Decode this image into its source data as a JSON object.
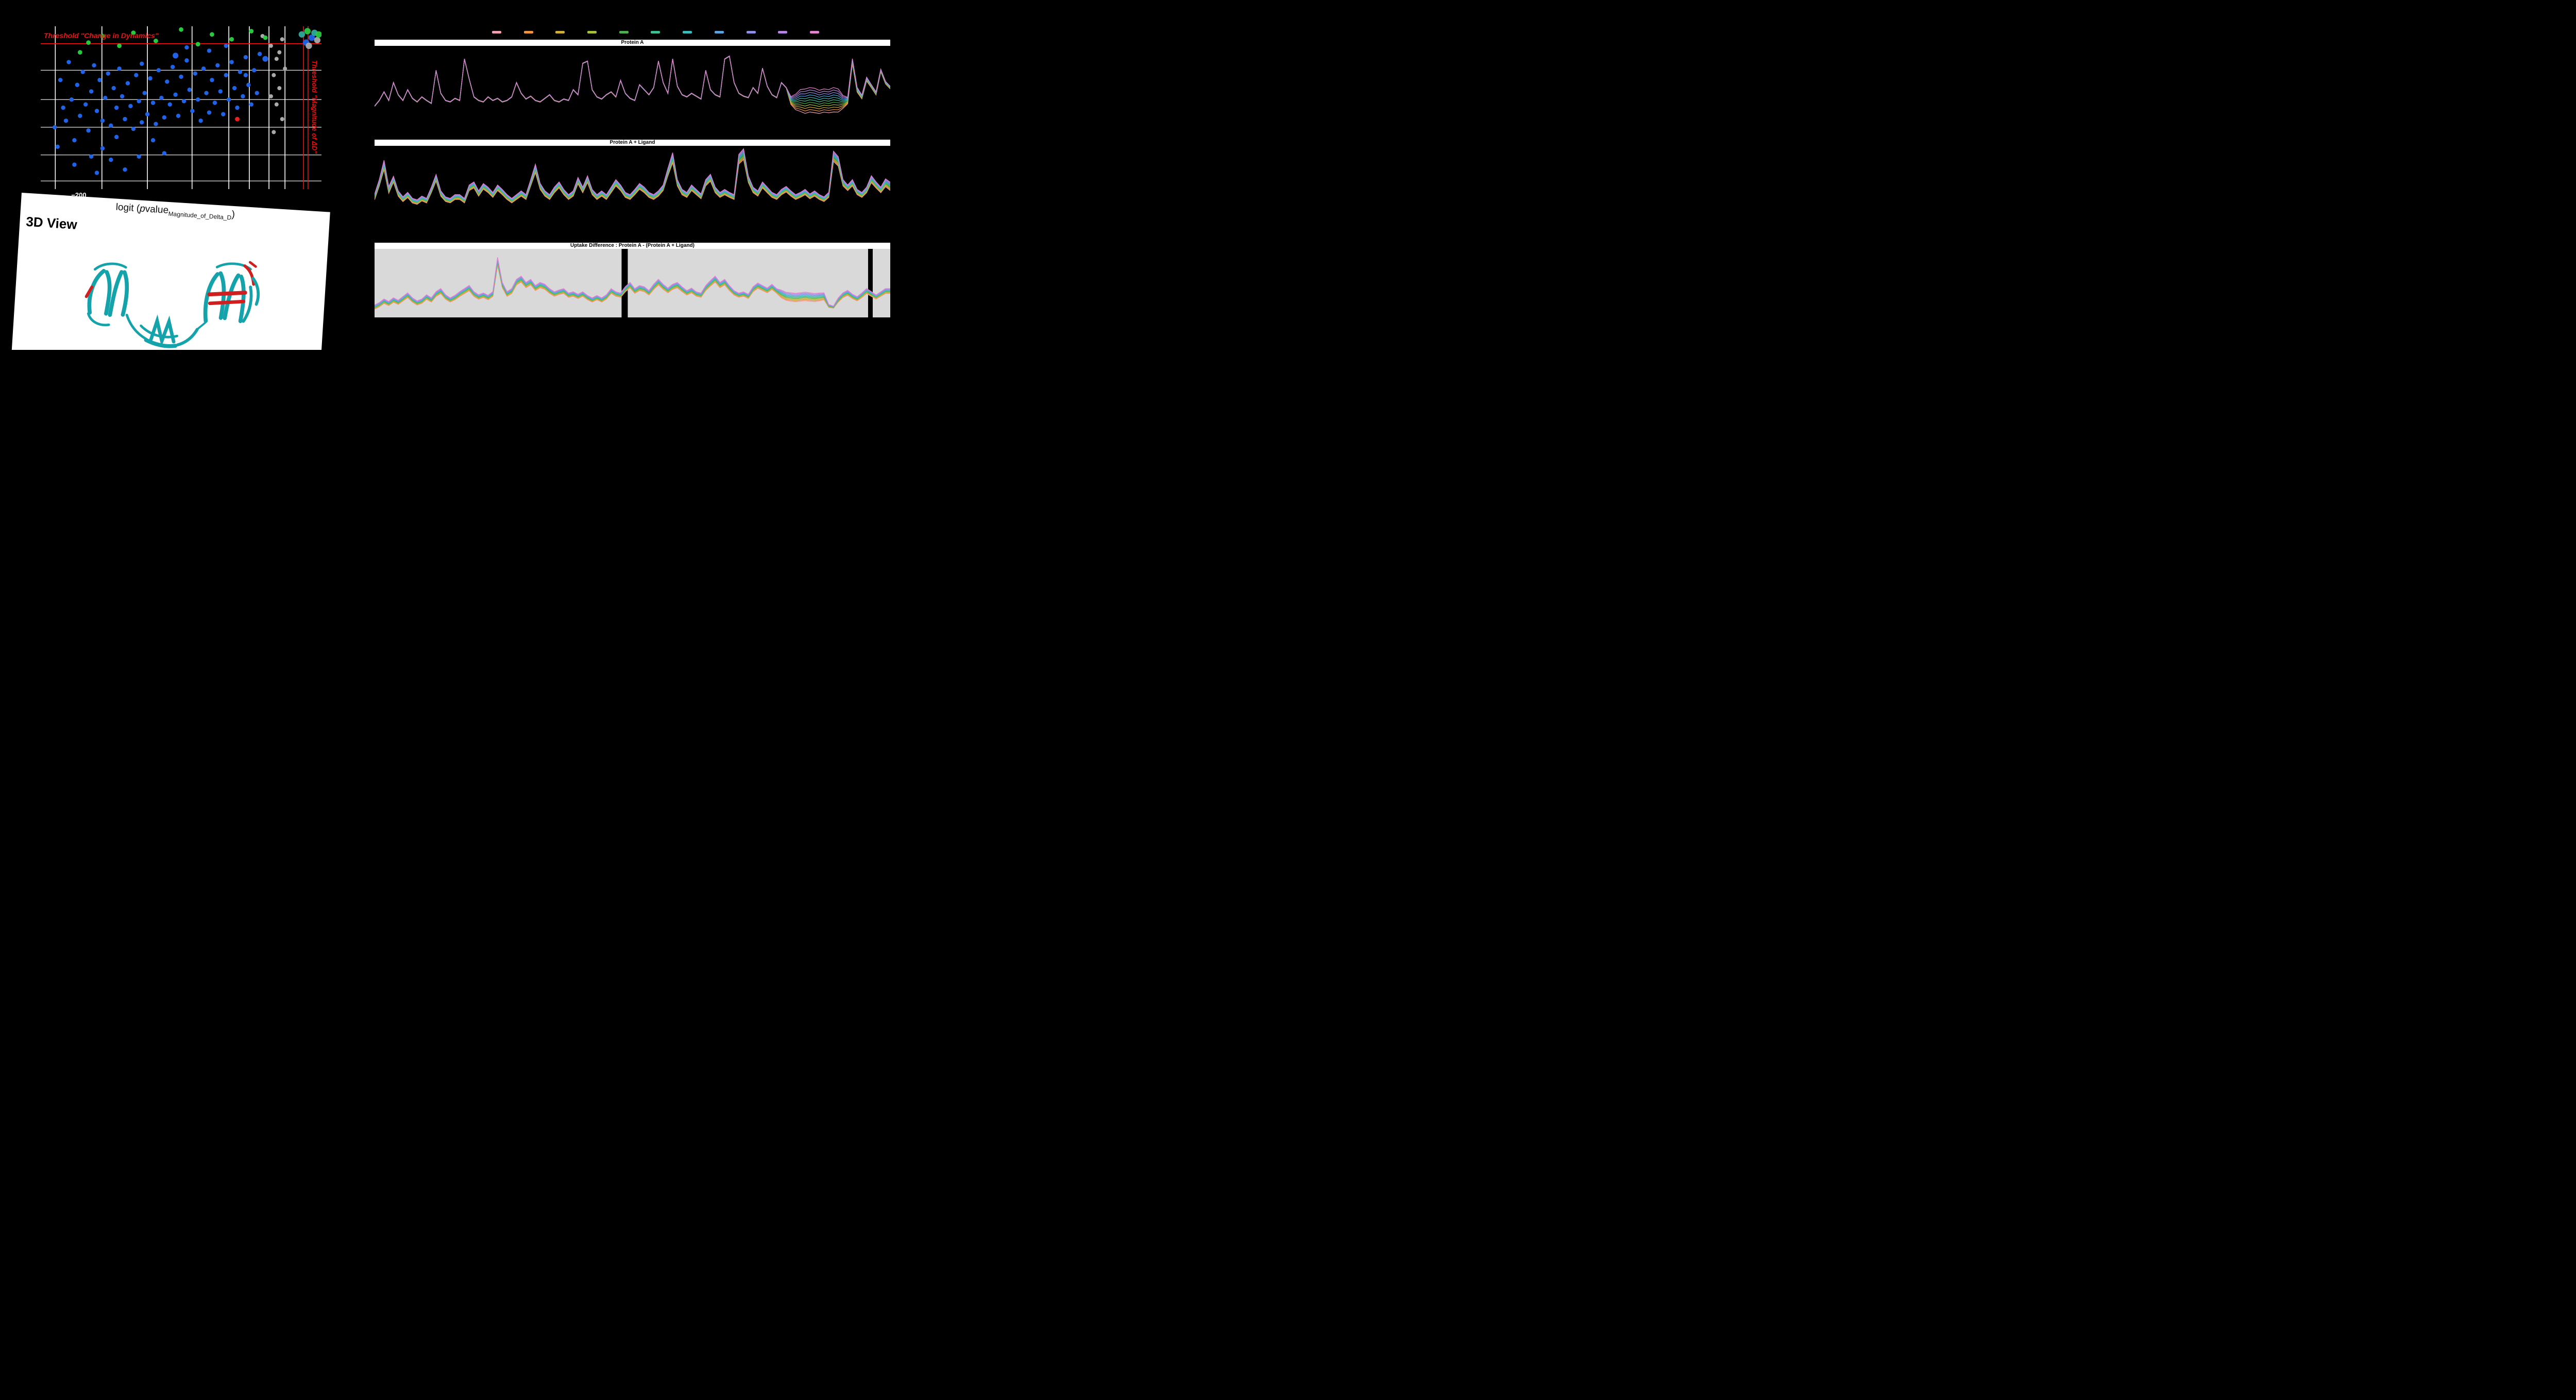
{
  "page": {
    "background": "#000000"
  },
  "volcano": {
    "threshold_dynamics_label": "Threshold \"Change in Dynamics\"",
    "threshold_magnitude_label": "Threshold \"Magnitude of ΔD\"",
    "threshold_color": "#f00f0f",
    "x_tick": "−200",
    "x_axis_label": {
      "prefix": "logit (",
      "p": "p",
      "value": "value",
      "sub": "Magnitude_of_Delta_D",
      "suffix": ")"
    },
    "colors": {
      "blue": "#1f63e8",
      "green": "#27c93e",
      "gray": "#a9a9a9",
      "red": "#e8201e",
      "teal": "#2fa89b"
    }
  },
  "viewer3d": {
    "title": "3D View",
    "colors": {
      "ribbon": "#14a3aa",
      "highlight": "#cf1f1f"
    }
  },
  "legend": {
    "colors": [
      "#f2a0ad",
      "#ef9241",
      "#cfae3c",
      "#a3bf3c",
      "#4fae4f",
      "#3fbf92",
      "#3abcbc",
      "#5aa2dc",
      "#8e8ee2",
      "#b783e2",
      "#e283cf"
    ]
  },
  "chart_data": [
    {
      "type": "scatter",
      "title": "",
      "xlabel": "logit (pvalue_Magnitude_of_Delta_D)",
      "x_ticks_shown": [
        "−200"
      ],
      "x_tick_pos": [
        0.135
      ],
      "gridlines_x": [
        0.052,
        0.218,
        0.38,
        0.539,
        0.67,
        0.743,
        0.813,
        0.87
      ],
      "gridlines_y": [
        0.27,
        0.45,
        0.62,
        0.79,
        0.95
      ],
      "thresholds": {
        "horizontal_y": 0.107,
        "vertical_x": [
          0.936,
          0.952
        ]
      },
      "points_blue": [
        [
          0.05,
          0.62
        ],
        [
          0.07,
          0.33
        ],
        [
          0.08,
          0.5
        ],
        [
          0.1,
          0.22
        ],
        [
          0.11,
          0.45
        ],
        [
          0.12,
          0.7
        ],
        [
          0.13,
          0.36
        ],
        [
          0.14,
          0.55
        ],
        [
          0.15,
          0.28
        ],
        [
          0.16,
          0.48
        ],
        [
          0.17,
          0.64
        ],
        [
          0.18,
          0.4
        ],
        [
          0.19,
          0.24
        ],
        [
          0.2,
          0.52
        ],
        [
          0.21,
          0.33
        ],
        [
          0.22,
          0.58
        ],
        [
          0.22,
          0.75
        ],
        [
          0.23,
          0.44
        ],
        [
          0.24,
          0.29
        ],
        [
          0.25,
          0.61
        ],
        [
          0.26,
          0.38
        ],
        [
          0.27,
          0.5
        ],
        [
          0.27,
          0.68
        ],
        [
          0.28,
          0.26
        ],
        [
          0.29,
          0.43
        ],
        [
          0.3,
          0.57
        ],
        [
          0.31,
          0.35
        ],
        [
          0.32,
          0.49
        ],
        [
          0.33,
          0.63
        ],
        [
          0.34,
          0.3
        ],
        [
          0.35,
          0.46
        ],
        [
          0.36,
          0.59
        ],
        [
          0.36,
          0.23
        ],
        [
          0.37,
          0.41
        ],
        [
          0.38,
          0.54
        ],
        [
          0.39,
          0.32
        ],
        [
          0.4,
          0.47
        ],
        [
          0.41,
          0.6
        ],
        [
          0.42,
          0.27
        ],
        [
          0.43,
          0.44
        ],
        [
          0.44,
          0.56
        ],
        [
          0.45,
          0.34
        ],
        [
          0.46,
          0.48
        ],
        [
          0.47,
          0.25
        ],
        [
          0.48,
          0.42
        ],
        [
          0.49,
          0.55
        ],
        [
          0.5,
          0.31
        ],
        [
          0.51,
          0.46
        ],
        [
          0.52,
          0.21
        ],
        [
          0.53,
          0.39
        ],
        [
          0.54,
          0.52
        ],
        [
          0.55,
          0.29
        ],
        [
          0.56,
          0.45
        ],
        [
          0.57,
          0.58
        ],
        [
          0.58,
          0.26
        ],
        [
          0.59,
          0.41
        ],
        [
          0.6,
          0.53
        ],
        [
          0.61,
          0.33
        ],
        [
          0.62,
          0.47
        ],
        [
          0.63,
          0.24
        ],
        [
          0.64,
          0.4
        ],
        [
          0.65,
          0.54
        ],
        [
          0.66,
          0.3
        ],
        [
          0.67,
          0.45
        ],
        [
          0.68,
          0.22
        ],
        [
          0.69,
          0.38
        ],
        [
          0.7,
          0.5
        ],
        [
          0.71,
          0.28
        ],
        [
          0.72,
          0.43
        ],
        [
          0.73,
          0.19
        ],
        [
          0.74,
          0.36
        ],
        [
          0.75,
          0.48
        ],
        [
          0.76,
          0.27
        ],
        [
          0.77,
          0.41
        ],
        [
          0.78,
          0.17
        ],
        [
          0.12,
          0.85
        ],
        [
          0.2,
          0.9
        ],
        [
          0.3,
          0.88
        ],
        [
          0.35,
          0.8
        ],
        [
          0.44,
          0.78
        ],
        [
          0.25,
          0.82
        ],
        [
          0.52,
          0.13
        ],
        [
          0.6,
          0.15
        ],
        [
          0.66,
          0.12
        ],
        [
          0.73,
          0.3
        ],
        [
          0.06,
          0.74
        ],
        [
          0.18,
          0.8
        ],
        [
          0.09,
          0.58
        ],
        [
          0.4,
          0.7
        ]
      ],
      "points_blue_large": [
        [
          0.8,
          0.2
        ],
        [
          0.48,
          0.18
        ]
      ],
      "points_green": [
        [
          0.14,
          0.16
        ],
        [
          0.17,
          0.1
        ],
        [
          0.22,
          0.06
        ],
        [
          0.28,
          0.12
        ],
        [
          0.33,
          0.04
        ],
        [
          0.41,
          0.09
        ],
        [
          0.5,
          0.02
        ],
        [
          0.56,
          0.11
        ],
        [
          0.61,
          0.05
        ],
        [
          0.68,
          0.08
        ],
        [
          0.75,
          0.03
        ],
        [
          0.8,
          0.07
        ]
      ],
      "points_gray": [
        [
          0.79,
          0.06
        ],
        [
          0.82,
          0.12
        ],
        [
          0.84,
          0.2
        ],
        [
          0.86,
          0.08
        ],
        [
          0.83,
          0.3
        ],
        [
          0.85,
          0.38
        ],
        [
          0.84,
          0.48
        ],
        [
          0.86,
          0.57
        ],
        [
          0.83,
          0.65
        ],
        [
          0.85,
          0.16
        ],
        [
          0.87,
          0.26
        ],
        [
          0.82,
          0.43
        ]
      ],
      "points_red": [
        [
          0.7,
          0.57
        ]
      ],
      "points_cluster": [
        [
          0.93,
          0.05,
          "teal"
        ],
        [
          0.95,
          0.03,
          "green"
        ],
        [
          0.965,
          0.07,
          "blue"
        ],
        [
          0.975,
          0.04,
          "teal"
        ],
        [
          0.985,
          0.085,
          "gray"
        ],
        [
          0.945,
          0.1,
          "blue"
        ],
        [
          0.99,
          0.05,
          "green"
        ],
        [
          0.955,
          0.12,
          "gray"
        ]
      ]
    },
    {
      "type": "line",
      "title": "Protein A",
      "series_count": 11,
      "fan_amplitude": 0.18,
      "y_top": 0.05,
      "y_bottom": 0.82,
      "base": [
        0.22,
        0.3,
        0.42,
        0.3,
        0.55,
        0.38,
        0.3,
        0.45,
        0.33,
        0.28,
        0.35,
        0.3,
        0.26,
        0.72,
        0.4,
        0.3,
        0.28,
        0.33,
        0.3,
        0.88,
        0.6,
        0.35,
        0.3,
        0.28,
        0.35,
        0.3,
        0.33,
        0.28,
        0.3,
        0.35,
        0.55,
        0.4,
        0.32,
        0.36,
        0.3,
        0.28,
        0.33,
        0.38,
        0.3,
        0.28,
        0.32,
        0.3,
        0.45,
        0.38,
        0.82,
        0.85,
        0.45,
        0.35,
        0.32,
        0.38,
        0.42,
        0.35,
        0.58,
        0.4,
        0.33,
        0.3,
        0.52,
        0.45,
        0.38,
        0.48,
        0.85,
        0.55,
        0.4,
        0.88,
        0.5,
        0.38,
        0.35,
        0.4,
        0.36,
        0.32,
        0.72,
        0.45,
        0.38,
        0.35,
        0.88,
        0.92,
        0.55,
        0.4,
        0.36,
        0.34,
        0.48,
        0.4,
        0.75,
        0.5,
        0.38,
        0.34,
        0.55,
        0.48,
        0.3,
        0.28,
        0.3,
        0.29,
        0.31,
        0.3,
        0.28,
        0.3,
        0.29,
        0.31,
        0.3,
        0.28,
        0.3,
        0.85,
        0.45,
        0.35,
        0.6,
        0.5,
        0.4,
        0.72,
        0.55,
        0.48
      ],
      "spread": [
        0.02,
        0.02,
        0.02,
        0.02,
        0.02,
        0.02,
        0.02,
        0.02,
        0.02,
        0.02,
        0.02,
        0.02,
        0.02,
        0.02,
        0.02,
        0.02,
        0.02,
        0.02,
        0.02,
        0.02,
        0.02,
        0.02,
        0.02,
        0.02,
        0.02,
        0.02,
        0.02,
        0.02,
        0.02,
        0.02,
        0.02,
        0.02,
        0.02,
        0.02,
        0.02,
        0.02,
        0.02,
        0.02,
        0.02,
        0.02,
        0.02,
        0.02,
        0.02,
        0.02,
        0.02,
        0.02,
        0.02,
        0.02,
        0.02,
        0.02,
        0.02,
        0.02,
        0.02,
        0.02,
        0.02,
        0.02,
        0.02,
        0.02,
        0.02,
        0.02,
        0.02,
        0.02,
        0.02,
        0.02,
        0.02,
        0.02,
        0.02,
        0.02,
        0.02,
        0.02,
        0.02,
        0.02,
        0.02,
        0.02,
        0.02,
        0.02,
        0.02,
        0.02,
        0.02,
        0.02,
        0.02,
        0.02,
        0.02,
        0.02,
        0.02,
        0.02,
        0.02,
        0.02,
        0.3,
        0.6,
        0.85,
        0.95,
        0.95,
        0.95,
        0.9,
        0.9,
        0.9,
        0.95,
        0.9,
        0.5,
        0.25,
        0.2,
        0.18,
        0.15,
        0.15,
        0.12,
        0.12,
        0.1,
        0.1,
        0.1
      ]
    },
    {
      "type": "line",
      "title": "Protein A + Ligand",
      "series_count": 11,
      "fan_amplitude": 0.13,
      "y_top": 0.05,
      "y_bottom": 0.8,
      "base": [
        0.35,
        0.55,
        0.8,
        0.45,
        0.6,
        0.4,
        0.32,
        0.38,
        0.3,
        0.28,
        0.33,
        0.3,
        0.45,
        0.62,
        0.4,
        0.32,
        0.3,
        0.35,
        0.35,
        0.3,
        0.48,
        0.52,
        0.4,
        0.5,
        0.45,
        0.38,
        0.48,
        0.42,
        0.35,
        0.3,
        0.35,
        0.4,
        0.35,
        0.55,
        0.75,
        0.5,
        0.4,
        0.35,
        0.45,
        0.52,
        0.42,
        0.35,
        0.4,
        0.58,
        0.45,
        0.6,
        0.42,
        0.35,
        0.4,
        0.35,
        0.45,
        0.55,
        0.48,
        0.38,
        0.35,
        0.42,
        0.5,
        0.45,
        0.38,
        0.35,
        0.4,
        0.48,
        0.7,
        0.9,
        0.55,
        0.42,
        0.38,
        0.48,
        0.42,
        0.36,
        0.55,
        0.62,
        0.45,
        0.38,
        0.42,
        0.38,
        0.35,
        0.88,
        0.95,
        0.6,
        0.45,
        0.4,
        0.52,
        0.45,
        0.38,
        0.35,
        0.42,
        0.46,
        0.4,
        0.35,
        0.38,
        0.42,
        0.36,
        0.4,
        0.35,
        0.32,
        0.38,
        0.92,
        0.85,
        0.55,
        0.48,
        0.55,
        0.42,
        0.38,
        0.45,
        0.6,
        0.52,
        0.45,
        0.55,
        0.5
      ],
      "spread": [
        0.3,
        0.35,
        0.5,
        0.35,
        0.32,
        0.28,
        0.26,
        0.28,
        0.25,
        0.24,
        0.26,
        0.25,
        0.3,
        0.35,
        0.28,
        0.25,
        0.24,
        0.26,
        0.26,
        0.24,
        0.3,
        0.32,
        0.28,
        0.3,
        0.29,
        0.26,
        0.3,
        0.28,
        0.26,
        0.24,
        0.26,
        0.28,
        0.26,
        0.34,
        0.45,
        0.32,
        0.28,
        0.26,
        0.3,
        0.32,
        0.28,
        0.26,
        0.28,
        0.34,
        0.3,
        0.36,
        0.28,
        0.26,
        0.28,
        0.26,
        0.3,
        0.34,
        0.3,
        0.27,
        0.26,
        0.28,
        0.31,
        0.3,
        0.27,
        0.26,
        0.28,
        0.3,
        0.4,
        0.55,
        0.34,
        0.29,
        0.27,
        0.3,
        0.28,
        0.26,
        0.34,
        0.37,
        0.3,
        0.27,
        0.29,
        0.27,
        0.26,
        0.52,
        0.58,
        0.36,
        0.3,
        0.28,
        0.32,
        0.3,
        0.27,
        0.26,
        0.29,
        0.3,
        0.28,
        0.26,
        0.27,
        0.29,
        0.26,
        0.28,
        0.26,
        0.25,
        0.27,
        0.55,
        0.5,
        0.34,
        0.3,
        0.34,
        0.28,
        0.27,
        0.3,
        0.38,
        0.33,
        0.3,
        0.42,
        0.45
      ]
    },
    {
      "type": "line",
      "title": "Uptake Difference : Protein A - (Protein A + Ligand)",
      "series_count": 11,
      "fan_amplitude": 0.12,
      "y_top": 0.05,
      "y_bottom": 0.92,
      "band_color": "#d9d9d9",
      "bg_bands": [
        [
          0,
          0.479
        ],
        [
          0.491,
          0.957
        ],
        [
          0.966,
          1.0
        ]
      ],
      "base": [
        0.08,
        0.12,
        0.18,
        0.14,
        0.2,
        0.16,
        0.22,
        0.28,
        0.2,
        0.15,
        0.18,
        0.25,
        0.2,
        0.3,
        0.35,
        0.25,
        0.2,
        0.24,
        0.3,
        0.35,
        0.4,
        0.3,
        0.25,
        0.28,
        0.24,
        0.3,
        0.85,
        0.45,
        0.3,
        0.35,
        0.5,
        0.55,
        0.45,
        0.5,
        0.4,
        0.45,
        0.42,
        0.35,
        0.3,
        0.33,
        0.35,
        0.28,
        0.3,
        0.26,
        0.3,
        0.24,
        0.2,
        0.24,
        0.2,
        0.25,
        0.35,
        0.3,
        0.28,
        0.38,
        0.45,
        0.35,
        0.4,
        0.38,
        0.32,
        0.42,
        0.5,
        0.42,
        0.36,
        0.42,
        0.45,
        0.38,
        0.32,
        0.36,
        0.3,
        0.28,
        0.4,
        0.48,
        0.55,
        0.45,
        0.5,
        0.4,
        0.32,
        0.28,
        0.3,
        0.26,
        0.38,
        0.44,
        0.4,
        0.36,
        0.42,
        0.35,
        0.3,
        0.26,
        0.25,
        0.24,
        0.25,
        0.26,
        0.25,
        0.24,
        0.25,
        0.26,
        0.1,
        0.08,
        0.2,
        0.28,
        0.32,
        0.26,
        0.22,
        0.28,
        0.35,
        0.3,
        0.25,
        0.3,
        0.35,
        0.35
      ],
      "spread": [
        0.3,
        0.3,
        0.32,
        0.3,
        0.32,
        0.3,
        0.32,
        0.34,
        0.31,
        0.3,
        0.31,
        0.33,
        0.31,
        0.34,
        0.36,
        0.32,
        0.3,
        0.32,
        0.34,
        0.36,
        0.38,
        0.34,
        0.32,
        0.33,
        0.32,
        0.34,
        0.55,
        0.38,
        0.34,
        0.35,
        0.4,
        0.42,
        0.38,
        0.4,
        0.36,
        0.38,
        0.37,
        0.34,
        0.32,
        0.33,
        0.34,
        0.31,
        0.32,
        0.31,
        0.32,
        0.31,
        0.3,
        0.31,
        0.3,
        0.31,
        0.34,
        0.32,
        0.31,
        0.35,
        0.38,
        0.34,
        0.36,
        0.35,
        0.32,
        0.37,
        0.4,
        0.37,
        0.34,
        0.37,
        0.38,
        0.35,
        0.32,
        0.34,
        0.31,
        0.3,
        0.36,
        0.39,
        0.42,
        0.38,
        0.4,
        0.36,
        0.32,
        0.3,
        0.31,
        0.3,
        0.35,
        0.38,
        0.36,
        0.34,
        0.37,
        0.33,
        0.55,
        0.58,
        0.6,
        0.6,
        0.6,
        0.6,
        0.6,
        0.58,
        0.56,
        0.5,
        0.2,
        0.15,
        0.3,
        0.34,
        0.36,
        0.32,
        0.3,
        0.33,
        0.36,
        0.33,
        0.3,
        0.32,
        0.35,
        0.35
      ]
    }
  ]
}
